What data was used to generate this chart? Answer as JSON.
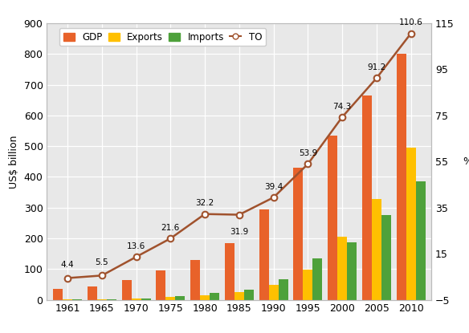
{
  "years": [
    1961,
    1965,
    1970,
    1975,
    1980,
    1985,
    1990,
    1995,
    2000,
    2005,
    2010
  ],
  "gdp": [
    35,
    42,
    65,
    95,
    130,
    185,
    295,
    430,
    535,
    665,
    800
  ],
  "exports": [
    1.5,
    1.5,
    3,
    10,
    15,
    25,
    48,
    97,
    205,
    328,
    495
  ],
  "imports": [
    1.5,
    1.5,
    5,
    12,
    22,
    32,
    67,
    135,
    188,
    275,
    385
  ],
  "to": [
    4.4,
    5.5,
    13.6,
    21.6,
    32.2,
    31.9,
    39.4,
    53.9,
    74.3,
    91.2,
    110.6
  ],
  "to_labels": [
    "4.4",
    "5.5",
    "13.6",
    "21.6",
    "32.2",
    "31.9",
    "39.4",
    "53.9",
    "74.3",
    "91.2",
    "110.6"
  ],
  "gdp_color": "#E8622A",
  "exports_color": "#FFC000",
  "imports_color": "#4EA13B",
  "to_color": "#A0522D",
  "ylabel_left": "US$ billion",
  "ylabel_right": "%",
  "ylim_left": [
    0,
    900
  ],
  "ylim_right": [
    -5,
    115
  ],
  "yticks_left": [
    0,
    100,
    200,
    300,
    400,
    500,
    600,
    700,
    800,
    900
  ],
  "yticks_right": [
    -5,
    15,
    35,
    55,
    75,
    95,
    115
  ],
  "plot_bg_color": "#E8E8E8",
  "fig_bg_color": "#FFFFFF",
  "legend_labels": [
    "GDP",
    "Exports",
    "Imports",
    "TO"
  ],
  "bar_width": 0.28,
  "label_offsets": [
    8,
    8,
    6,
    6,
    6,
    -12,
    6,
    6,
    6,
    6,
    6
  ]
}
